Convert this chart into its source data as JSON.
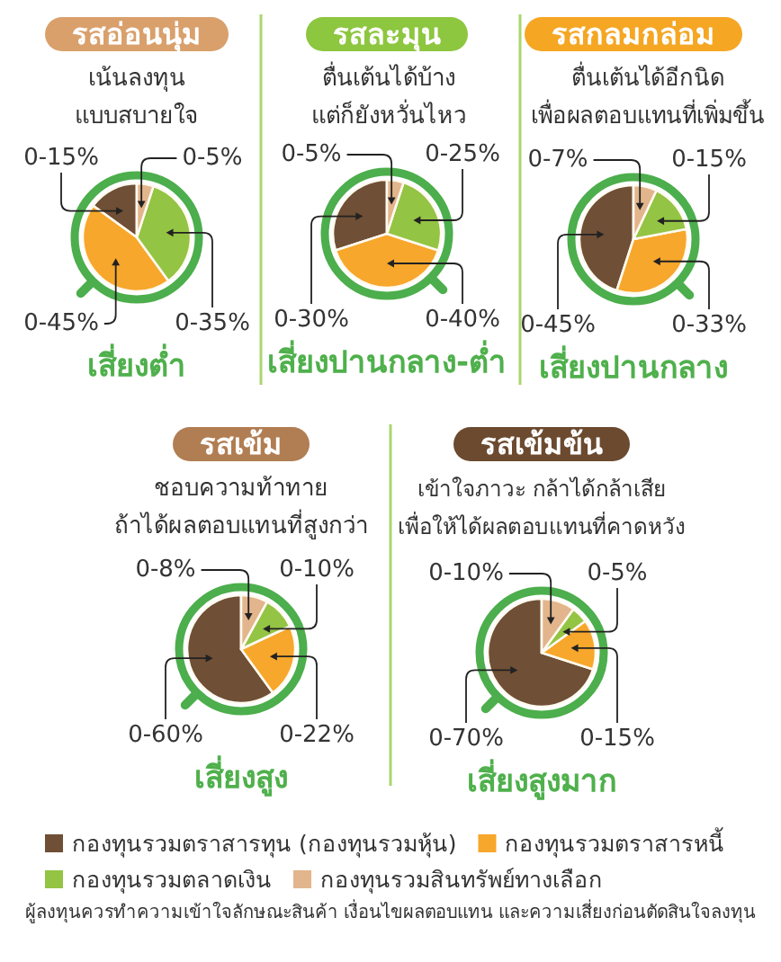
{
  "chart_data": [
    {
      "type": "pie",
      "title": "รสอ่อนนุ่ม",
      "subtitle": "เน้นลงทุน\nแบบสบายใจ",
      "categories": [
        null,
        null,
        null,
        null
      ],
      "values": [
        15,
        45,
        35,
        5
      ],
      "colors": [
        "#6f4f35",
        "#f7a72b",
        "#94c443",
        "#e2b58c"
      ],
      "annotations": [
        "เสี่ยงต่ำ",
        "0-15%",
        "0-45%",
        "0-35%",
        "0-5%"
      ]
    },
    {
      "type": "pie",
      "title": "รสละมุน",
      "subtitle": "ตื่นเต้นได้บ้าง\nแต่ก็ยังหวั่นไหว",
      "categories": [
        null,
        null,
        null,
        null
      ],
      "values": [
        30,
        40,
        25,
        5
      ],
      "colors": [
        "#6f4f35",
        "#f7a72b",
        "#94c443",
        "#e2b58c"
      ],
      "annotations": [
        "เสี่ยงปานกลาง-ต่ำ",
        "0-30%",
        "0-40%",
        "0-25%",
        "0-5%"
      ]
    },
    {
      "type": "pie",
      "title": "รสกลมกล่อม",
      "subtitle": "ตื่นเต้นได้อีกนิด\nเพื่อผลตอบแทนที่เพิ่มขึ้น",
      "categories": [
        null,
        null,
        null,
        null
      ],
      "values": [
        45,
        33,
        15,
        7
      ],
      "colors": [
        "#6f4f35",
        "#f7a72b",
        "#94c443",
        "#e2b58c"
      ],
      "annotations": [
        "เสี่ยงปานกลาง",
        "0-45%",
        "0-33%",
        "0-15%",
        "0-7%"
      ]
    },
    {
      "type": "pie",
      "title": "รสเข้ม",
      "subtitle": "ชอบความท้าทาย\nถ้าได้ผลตอบแทนที่สูงกว่า",
      "categories": [
        null,
        null,
        null,
        null
      ],
      "values": [
        60,
        22,
        10,
        8
      ],
      "colors": [
        "#6f4f35",
        "#f7a72b",
        "#94c443",
        "#e2b58c"
      ],
      "annotations": [
        "เสี่ยงสูง",
        "0-60%",
        "0-22%",
        "0-10%",
        "0-8%"
      ]
    },
    {
      "type": "pie",
      "title": "รสเข้มข้น",
      "subtitle": "เข้าใจภาวะ กล้าได้กล้าเสีย\nเพื่อให้ได้ผลตอบแทนที่คาดหวัง",
      "categories": [
        "กองทุนรวมตราสารทุน (กองทุนรวมหุ้น)",
        "กองทุนรวมตราสารหนี้",
        "กองทุนรวมตลาดเงิน",
        "กองทุนรวมสินทรัพย์ทางเลือก"
      ],
      "values": [
        70,
        15,
        5,
        10
      ],
      "colors": [
        "#6f4f35",
        "#f7a72b",
        "#94c443",
        "#e2b58c"
      ],
      "legend": "bottom",
      "annotations": [
        "เสี่ยงสูงมาก",
        "0-70%",
        "0-15%",
        "0-5%",
        "0-10%",
        "ผู้ลงทุนควรทำความเข้าใจลักษณะสินค้า เงื่อนไขผลตอบแทน และความเสี่ยงก่อนตัดสินใจลงทุน"
      ]
    }
  ]
}
